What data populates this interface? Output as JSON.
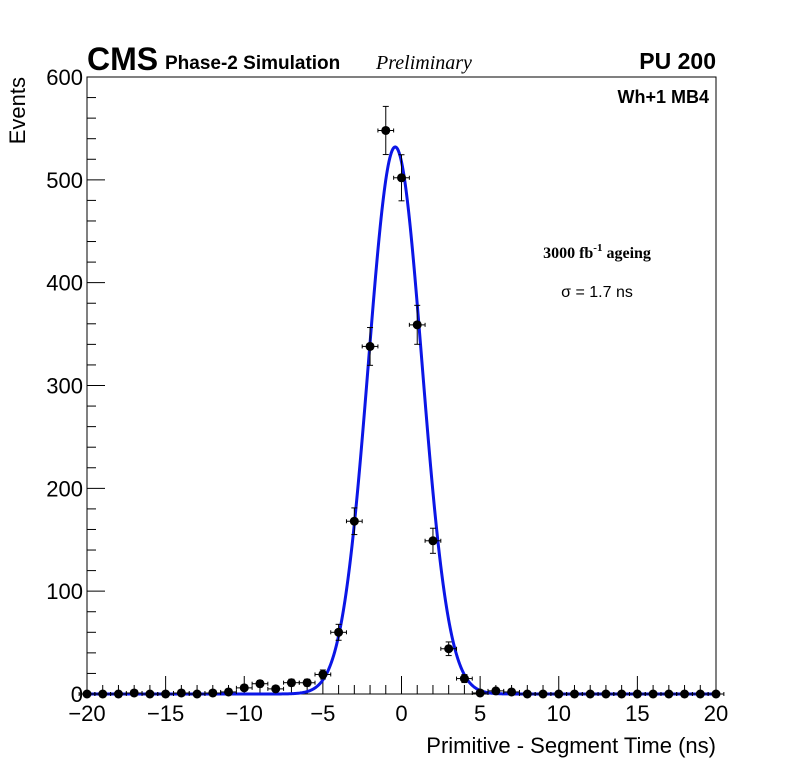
{
  "header": {
    "cms_label": "CMS",
    "simulation_label": "Phase-2 Simulation",
    "preliminary_label": "Preliminary",
    "pileup_label": "PU 200"
  },
  "legend": {
    "chamber_label": "Wh+1 MB4",
    "ageing_main": "3000 fb",
    "ageing_sup": "-1",
    "ageing_tail": " ageing",
    "sigma_label": "σ = 1.7 ns"
  },
  "colors": {
    "fit": "#0b16e6",
    "points": "#000000",
    "axis": "#000000"
  },
  "chart_data": {
    "type": "scatter",
    "title": "",
    "xlabel": "Primitive - Segment Time (ns)",
    "ylabel": "Events",
    "xlim": [
      -20,
      20
    ],
    "ylim": [
      0,
      600
    ],
    "x_ticks": [
      -20,
      -15,
      -10,
      -5,
      0,
      5,
      10,
      15,
      20
    ],
    "x_tick_labels": [
      "−20",
      "−15",
      "−10",
      "−5",
      "0",
      "5",
      "10",
      "15",
      "20"
    ],
    "y_ticks": [
      0,
      100,
      200,
      300,
      400,
      500,
      600
    ],
    "y_tick_labels": [
      "0",
      "100",
      "200",
      "300",
      "400",
      "500",
      "600"
    ],
    "bin_half_width": 0.5,
    "series": [
      {
        "name": "Simulation",
        "x": [
          -20,
          -19,
          -18,
          -17,
          -16,
          -15,
          -14,
          -13,
          -12,
          -11,
          -10,
          -9,
          -8,
          -7,
          -6,
          -5,
          -4,
          -3,
          -2,
          -1,
          0,
          1,
          2,
          3,
          4,
          5,
          6,
          7,
          8,
          9,
          10,
          11,
          12,
          13,
          14,
          15,
          16,
          17,
          18,
          19,
          20
        ],
        "y": [
          0,
          0,
          0,
          1,
          0,
          0,
          1,
          0,
          1,
          2,
          6,
          10,
          5,
          11,
          11,
          19,
          60,
          168,
          338,
          548,
          502,
          359,
          149,
          44,
          15,
          1,
          3,
          2,
          0,
          0,
          0,
          0,
          0,
          0,
          0,
          0,
          0,
          0,
          0,
          0,
          0
        ]
      },
      {
        "name": "Gaussian fit",
        "amplitude": 532,
        "mean": -0.4,
        "sigma": 1.7
      }
    ]
  }
}
